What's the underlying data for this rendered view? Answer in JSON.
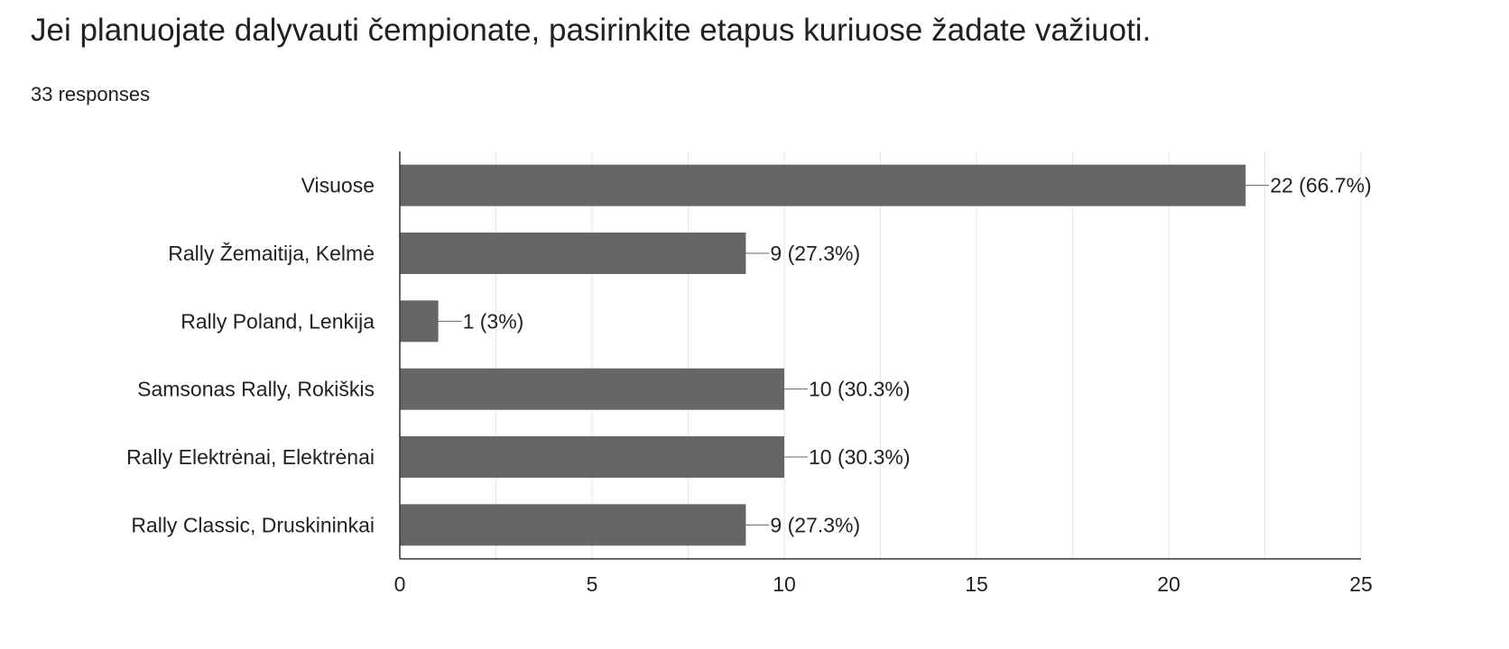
{
  "question_title": "Jei planuojate dalyvauti čempionate, pasirinkite etapus kuriuose žadate važiuoti.",
  "responses_text": "33 responses",
  "chart_data": {
    "type": "bar",
    "orientation": "horizontal",
    "categories": [
      "Visuose",
      "Rally Žemaitija, Kelmė",
      "Rally Poland, Lenkija",
      "Samsonas Rally, Rokiškis",
      "Rally Elektrėnai, Elektrėnai",
      "Rally Classic, Druskininkai"
    ],
    "values": [
      22,
      9,
      1,
      10,
      10,
      9
    ],
    "data_labels": [
      "22 (66.7%)",
      "9 (27.3%)",
      "1 (3%)",
      "10 (30.3%)",
      "10 (30.3%)",
      "9 (27.3%)"
    ],
    "xlim": [
      0,
      25
    ],
    "xticks": [
      0,
      5,
      10,
      15,
      20,
      25
    ],
    "grid": true,
    "bar_color": "#666666"
  }
}
